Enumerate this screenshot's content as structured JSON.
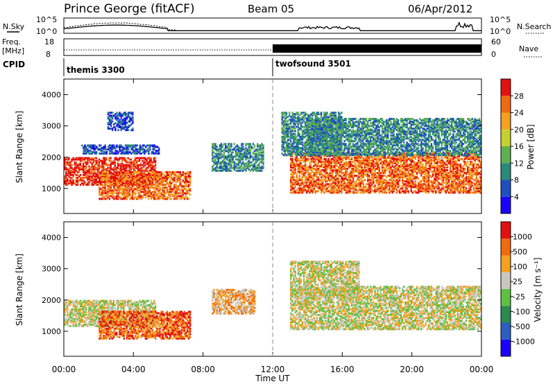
{
  "header": {
    "title": "Prince George (fitACF)",
    "beam": "Beam 05",
    "date": "06/Apr/2012"
  },
  "sky_panel": {
    "left_label": "N.Sky",
    "right_label": "N.Search",
    "left_ticks": [
      "10^5",
      "10^0"
    ],
    "right_ticks": [
      "10^5",
      "10^0"
    ]
  },
  "freq_panel": {
    "left_label_1": "Freq.",
    "left_label_2": "[MHz]",
    "right_label": "Nave",
    "left_ticks": [
      "18",
      "8"
    ],
    "right_ticks": [
      "60",
      "0"
    ]
  },
  "cpid_panel": {
    "label": "CPID",
    "programs": [
      {
        "name": "themis 3300",
        "start_hour": 0
      },
      {
        "name": "twofsound 3501",
        "start_hour": 12
      }
    ]
  },
  "chart_data": [
    {
      "type": "heatmap",
      "name": "power",
      "ylabel": "Slant Range [km]",
      "xlabel": "",
      "ylim": [
        200,
        4500
      ],
      "y_ticks": [
        "1000",
        "2000",
        "3000",
        "4000"
      ],
      "colorbar_label": "Power [dB]",
      "colorbar_ticks": [
        "28",
        "24",
        "20",
        "16",
        "12",
        "8",
        "4"
      ],
      "colors": [
        "#1a00ff",
        "#1e4fbf",
        "#2a8a7a",
        "#5fb050",
        "#c8d030",
        "#f5a020",
        "#f06a10",
        "#e31010"
      ],
      "regions": [
        {
          "x": [
            0.0,
            5.3
          ],
          "y": [
            1150,
            2050
          ],
          "level": 7
        },
        {
          "x": [
            1.0,
            5.5
          ],
          "y": [
            2150,
            2450
          ],
          "level": 1
        },
        {
          "x": [
            2.0,
            7.3
          ],
          "y": [
            700,
            1600
          ],
          "level": 6
        },
        {
          "x": [
            2.5,
            4.0
          ],
          "y": [
            2900,
            3500
          ],
          "level": 1
        },
        {
          "x": [
            8.5,
            11.5
          ],
          "y": [
            1600,
            2500
          ],
          "level": 2
        },
        {
          "x": [
            13.0,
            24.0
          ],
          "y": [
            900,
            2200
          ],
          "level": 6
        },
        {
          "x": [
            12.5,
            16.0
          ],
          "y": [
            2100,
            3500
          ],
          "level": 2
        },
        {
          "x": [
            14.0,
            24.0
          ],
          "y": [
            2100,
            3300
          ],
          "level": 2
        }
      ]
    },
    {
      "type": "heatmap",
      "name": "velocity",
      "ylabel": "Slant Range [km]",
      "xlabel": "Time UT",
      "ylim": [
        200,
        4500
      ],
      "y_ticks": [
        "1000",
        "2000",
        "3000",
        "4000"
      ],
      "x_ticks": [
        "00:00",
        "04:00",
        "08:00",
        "12:00",
        "16:00",
        "20:00",
        "00:00"
      ],
      "colorbar_label": "Velocity [m s⁻¹]",
      "colorbar_ticks": [
        "1000",
        "500",
        "100",
        "25",
        "-25",
        "-100",
        "-500",
        "-1000"
      ],
      "colors": [
        "#1a00ff",
        "#2a5fbf",
        "#2a8a50",
        "#60c040",
        "#c8c8c0",
        "#f5a020",
        "#f06a10",
        "#e31010"
      ],
      "regions": [
        {
          "x": [
            0.0,
            5.3
          ],
          "y": [
            1200,
            2050
          ],
          "level": 4
        },
        {
          "x": [
            2.0,
            7.3
          ],
          "y": [
            800,
            1700
          ],
          "level": 6
        },
        {
          "x": [
            13.0,
            24.0
          ],
          "y": [
            1100,
            2500
          ],
          "level": 4
        },
        {
          "x": [
            13.0,
            17.0
          ],
          "y": [
            2100,
            3300
          ],
          "level": 4
        },
        {
          "x": [
            8.5,
            11.0
          ],
          "y": [
            1600,
            2400
          ],
          "level": 5
        }
      ]
    }
  ]
}
